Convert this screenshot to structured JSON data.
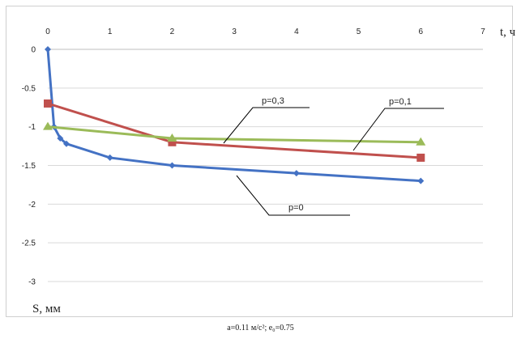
{
  "chart_data": {
    "type": "line",
    "xlabel": "t, ч",
    "ylabel": "S, мм",
    "xlim": [
      0,
      7
    ],
    "ylim": [
      -3,
      0
    ],
    "x_ticks": [
      "0",
      "1",
      "2",
      "3",
      "4",
      "5",
      "6",
      "7"
    ],
    "y_ticks": [
      "0",
      "-0.5",
      "-1",
      "-1.5",
      "-2",
      "-2.5",
      "-3"
    ],
    "x_axis_position": "top",
    "grid": "horizontal",
    "series": [
      {
        "name": "p=0",
        "color": "#4472c4",
        "marker": "diamond",
        "x": [
          0,
          0.1,
          0.2,
          0.3,
          1,
          2,
          4,
          6
        ],
        "y": [
          0,
          -1.0,
          -1.15,
          -1.22,
          -1.4,
          -1.5,
          -1.6,
          -1.7
        ]
      },
      {
        "name": "p=0,1",
        "color": "#c0504d",
        "marker": "square",
        "x": [
          0,
          2,
          6
        ],
        "y": [
          -0.7,
          -1.2,
          -1.4
        ]
      },
      {
        "name": "p=0,3",
        "color": "#9bbb59",
        "marker": "triangle",
        "x": [
          0,
          2,
          6
        ],
        "y": [
          -1.0,
          -1.15,
          -1.2
        ]
      }
    ],
    "annotations": [
      "p=0,3",
      "p=0,1",
      "p=0"
    ]
  },
  "caption": {
    "text": "а=0.11 м/с²; е₀=0.75"
  }
}
